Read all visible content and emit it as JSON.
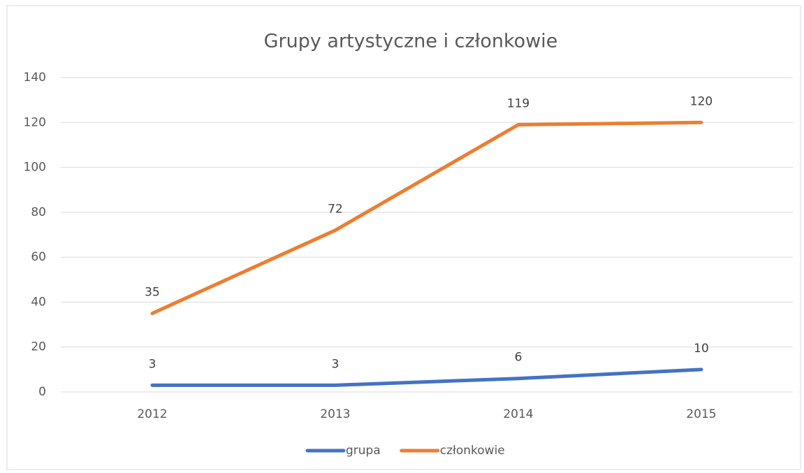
{
  "chart_data": {
    "type": "line",
    "title": "Grupy artystyczne i członkowie",
    "categories": [
      "2012",
      "2013",
      "2014",
      "2015"
    ],
    "series": [
      {
        "name": "grupa",
        "color": "#4472c4",
        "values": [
          3,
          3,
          6,
          10
        ]
      },
      {
        "name": "członkowie",
        "color": "#ed7d31",
        "values": [
          35,
          72,
          119,
          120
        ]
      }
    ],
    "ylim": [
      0,
      140
    ],
    "yticks": [
      0,
      20,
      40,
      60,
      80,
      100,
      120,
      140
    ],
    "grid": true,
    "legend": "bottom"
  }
}
